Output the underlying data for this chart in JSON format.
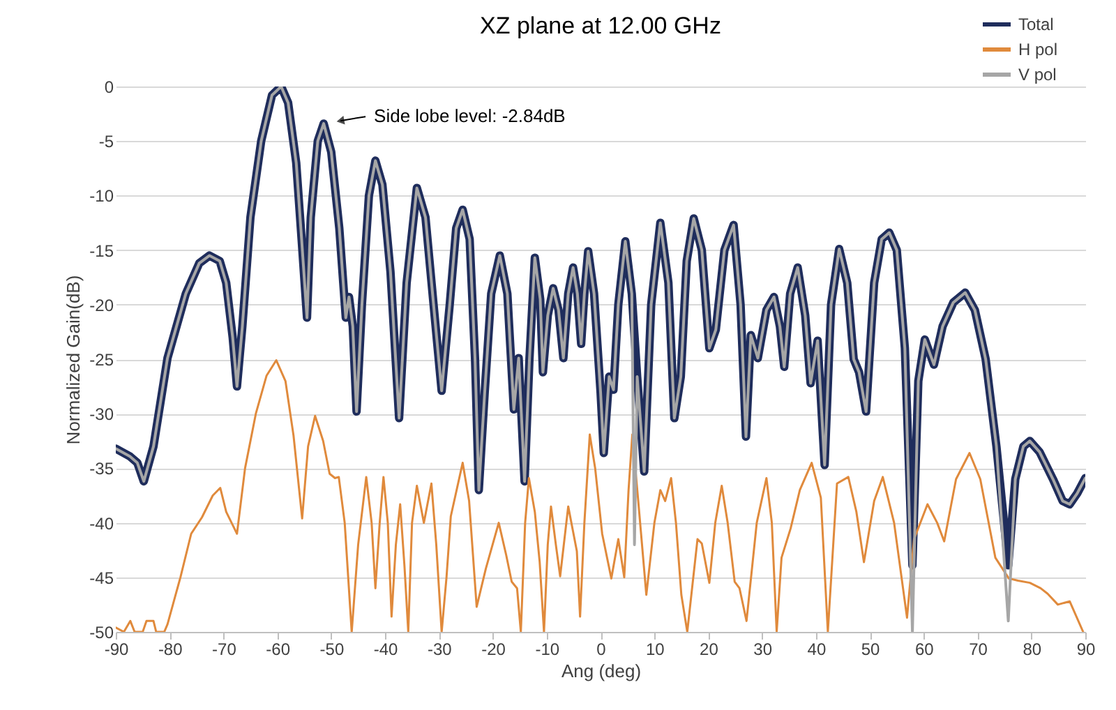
{
  "chart_data": {
    "type": "line",
    "title": "XZ plane at 12.00 GHz",
    "xlabel": "Ang (deg)",
    "ylabel": "Normalized Gain(dB)",
    "xlim": [
      -90,
      90
    ],
    "xticks": [
      -90,
      -80,
      -70,
      -60,
      -50,
      -40,
      -30,
      -20,
      -10,
      0,
      10,
      20,
      30,
      40,
      50,
      60,
      70,
      80,
      90
    ],
    "ylim": [
      -50,
      0
    ],
    "yticks": [
      -50,
      -45,
      -40,
      -35,
      -30,
      -25,
      -20,
      -15,
      -10,
      -5,
      0
    ],
    "grid": "y",
    "legend": "top right",
    "marker": "none",
    "line_style": "solid",
    "annotations": [
      {
        "text": "Side lobe level: -2.84dB",
        "x": -51.4,
        "y": -3.4
      }
    ],
    "series": [
      {
        "name": "Total",
        "color": "#1f2d5c",
        "x": [
          -90,
          -87.4,
          -86,
          -84.8,
          -83,
          -80.4,
          -77,
          -74.5,
          -72.6,
          -70.7,
          -69.5,
          -68.3,
          -67.5,
          -66.5,
          -65,
          -63,
          -61,
          -59.3,
          -58,
          -56.5,
          -55.5,
          -54.5,
          -53.8,
          -52.5,
          -51.4,
          -50,
          -48.5,
          -47.3,
          -46.7,
          -46,
          -45.3,
          -44.3,
          -43,
          -41.8,
          -40.5,
          -39,
          -37.4,
          -36,
          -34.1,
          -32.5,
          -31,
          -29.5,
          -28,
          -26.8,
          -25.6,
          -24.3,
          -23.3,
          -22.6,
          -21.5,
          -20.3,
          -18.7,
          -17.3,
          -16.1,
          -15.2,
          -14.1,
          -13.2,
          -12.2,
          -11.2,
          -10.7,
          -9.8,
          -8.8,
          -7.8,
          -6.9,
          -6,
          -5.1,
          -4.3,
          -3.6,
          -3,
          -2.3,
          -1.2,
          0,
          0.6,
          1.6,
          2.4,
          3.3,
          4.6,
          5.8,
          6.8,
          8.1,
          9.4,
          11.1,
          12.6,
          13.7,
          14.9,
          16,
          17.3,
          18.8,
          20.2,
          21.4,
          23,
          24.7,
          26,
          27,
          27.9,
          29.2,
          30.8,
          32.2,
          33.3,
          34.1,
          35.2,
          36.6,
          38,
          39,
          40.3,
          41.6,
          42.8,
          44.3,
          45.8,
          47,
          48,
          49.3,
          50.8,
          52.2,
          53.6,
          55,
          56.5,
          57.9,
          59,
          60.2,
          61.9,
          63.5,
          65.5,
          67.7,
          69.5,
          71.5,
          73.5,
          75.7,
          77,
          78.5,
          79.7,
          81.5,
          84,
          85.8,
          87.1,
          88.5,
          90
        ],
        "values": [
          -33.2,
          -33.9,
          -34.5,
          -36.2,
          -33,
          -24.9,
          -19,
          -16.2,
          -15.5,
          -16,
          -18,
          -23,
          -27.5,
          -22,
          -12,
          -5,
          -0.8,
          0,
          -1.5,
          -7,
          -14,
          -21.2,
          -12,
          -5,
          -3.4,
          -6,
          -13,
          -21.2,
          -19.3,
          -22,
          -29.8,
          -20,
          -10,
          -6.8,
          -9,
          -17,
          -30.4,
          -18,
          -9.3,
          -12,
          -20,
          -27.9,
          -20,
          -13,
          -11.3,
          -14,
          -25,
          -37,
          -28,
          -19,
          -15.5,
          -19,
          -29.6,
          -24.9,
          -36.2,
          -25,
          -15.7,
          -19.5,
          -26.2,
          -21,
          -18.5,
          -20.5,
          -24.9,
          -19,
          -16.6,
          -19,
          -23.6,
          -19,
          -15.1,
          -19,
          -28,
          -33.6,
          -26.6,
          -27.8,
          -20,
          -14.2,
          -19,
          -26.6,
          -35.3,
          -20,
          -12.5,
          -18,
          -30.4,
          -26.6,
          -16,
          -12.1,
          -15,
          -24,
          -22.3,
          -15,
          -12.7,
          -20,
          -32.1,
          -22.8,
          -24.9,
          -20.5,
          -19.3,
          -22,
          -25.7,
          -19,
          -16.6,
          -21,
          -27.2,
          -23.3,
          -34.7,
          -20,
          -14.9,
          -18,
          -25,
          -26.2,
          -29.8,
          -18,
          -14,
          -13.4,
          -15,
          -24,
          -43.9,
          -27,
          -23.2,
          -25.5,
          -22,
          -19.8,
          -18.9,
          -20.5,
          -25,
          -33,
          -43.9,
          -36,
          -33,
          -32.5,
          -33.5,
          -36,
          -38,
          -38.3,
          -37.3,
          -35.9
        ]
      },
      {
        "name": "H pol",
        "color": "#e08a3c",
        "x": [
          -90,
          -88.5,
          -87.3,
          -86.5,
          -85,
          -84.3,
          -83,
          -82.5,
          -81,
          -80.4,
          -78,
          -76,
          -74,
          -72,
          -70.6,
          -69.5,
          -68.5,
          -67.5,
          -66,
          -64,
          -62,
          -60.2,
          -58.5,
          -57,
          -55.4,
          -54.3,
          -53,
          -51.5,
          -50.3,
          -49.3,
          -48.6,
          -47.5,
          -46.2,
          -45,
          -43.5,
          -42.5,
          -41.8,
          -41,
          -40.3,
          -39.5,
          -38.8,
          -38,
          -37.2,
          -36.4,
          -35.7,
          -35,
          -34.1,
          -32.8,
          -31.4,
          -30.5,
          -29.5,
          -28.6,
          -27.8,
          -25.6,
          -24.4,
          -23,
          -21.3,
          -18.9,
          -17.5,
          -16.5,
          -15.5,
          -14.8,
          -14,
          -13.3,
          -12.2,
          -11.3,
          -10.5,
          -9.8,
          -9.2,
          -8.3,
          -7.5,
          -6,
          -4.4,
          -3.8,
          -3,
          -2,
          -1,
          0.3,
          2,
          3.3,
          4.4,
          5.2,
          5.9,
          7,
          8.5,
          10,
          11.1,
          12,
          13.1,
          14,
          15,
          16.1,
          18,
          18.8,
          20.2,
          21.3,
          22.5,
          23.6,
          24.9,
          25.8,
          27.1,
          29,
          30.8,
          31.8,
          32.7,
          33.6,
          35.3,
          37,
          39.2,
          40.9,
          42.2,
          43.9,
          46,
          47.5,
          48.9,
          50.8,
          52.4,
          54.5,
          56.9,
          58.2,
          60.7,
          62.5,
          63.8,
          66,
          68.5,
          70.5,
          73.3,
          75.8,
          77.5,
          79.7,
          81.7,
          83,
          84.9,
          87.1,
          89.6
        ],
        "values": [
          -49.6,
          -50,
          -49,
          -50,
          -50,
          -49,
          -49,
          -50,
          -50,
          -49.3,
          -45,
          -41,
          -39.5,
          -37.5,
          -36.8,
          -39,
          -40,
          -41,
          -35,
          -30,
          -26.5,
          -25.1,
          -27,
          -32,
          -39.6,
          -33,
          -30.2,
          -32.5,
          -35.5,
          -35.9,
          -35.8,
          -40,
          -50,
          -42,
          -35.8,
          -40,
          -46,
          -40,
          -35.8,
          -40,
          -48.6,
          -42,
          -38.3,
          -44,
          -50,
          -40,
          -36.6,
          -40,
          -36.4,
          -42,
          -50,
          -45,
          -39.4,
          -34.5,
          -38,
          -47.7,
          -44.2,
          -40,
          -43,
          -45.4,
          -46,
          -50,
          -40,
          -35.9,
          -39,
          -43.6,
          -50,
          -42,
          -38.5,
          -42,
          -44.9,
          -38.5,
          -42.6,
          -48.6,
          -40,
          -31.9,
          -35,
          -41,
          -45.1,
          -41.5,
          -45,
          -37,
          -31.9,
          -38,
          -46.6,
          -40,
          -37,
          -38,
          -35.9,
          -40,
          -46.6,
          -50,
          -41.5,
          -41.9,
          -45.5,
          -40,
          -36.6,
          -40,
          -45.4,
          -46,
          -49,
          -40,
          -35.9,
          -40,
          -50,
          -43.2,
          -40.5,
          -37,
          -34.5,
          -37.7,
          -50,
          -36.4,
          -35.8,
          -39,
          -43.6,
          -38,
          -35.8,
          -40,
          -48.7,
          -41.5,
          -38.3,
          -40,
          -41.7,
          -36,
          -33.6,
          -36,
          -43.2,
          -45.1,
          -45.3,
          -45.5,
          -46,
          -46.5,
          -47.5,
          -47.2,
          -50
        ]
      },
      {
        "name": "V pol",
        "color": "#a6a6a6",
        "x": [
          -90,
          -87.4,
          -86,
          -84.8,
          -83,
          -80.4,
          -77,
          -74.5,
          -72.6,
          -70.7,
          -69.5,
          -68.3,
          -67.5,
          -66.5,
          -65,
          -63,
          -61,
          -59.3,
          -58,
          -56.5,
          -55.5,
          -54.5,
          -53.8,
          -52.5,
          -51.4,
          -50,
          -48.5,
          -47.3,
          -46.7,
          -46,
          -45.3,
          -44.3,
          -43,
          -41.8,
          -40.5,
          -39,
          -37.4,
          -36,
          -34.1,
          -32.5,
          -31,
          -29.5,
          -28,
          -26.8,
          -25.6,
          -24.3,
          -23.3,
          -22.6,
          -21.5,
          -20.3,
          -18.7,
          -17.3,
          -16.1,
          -15.2,
          -14.1,
          -13.2,
          -12.2,
          -11.2,
          -10.7,
          -9.8,
          -8.8,
          -7.8,
          -6.9,
          -6,
          -5.1,
          -4.3,
          -3.6,
          -3,
          -2.3,
          -1.2,
          0,
          0.6,
          1.6,
          2.4,
          3.3,
          4.6,
          5.8,
          6.3,
          6.8,
          8.1,
          9.4,
          11.1,
          12.6,
          13.7,
          14.9,
          16,
          17.3,
          18.8,
          20.2,
          21.4,
          23,
          24.7,
          26,
          27,
          27.9,
          29.2,
          30.8,
          32.2,
          33.3,
          34.1,
          35.2,
          36.6,
          38,
          39,
          40.3,
          41.6,
          42.8,
          44.3,
          45.8,
          47,
          48,
          49.3,
          50.8,
          52.2,
          53.6,
          55,
          56.5,
          57.9,
          59,
          60.2,
          61.9,
          63.5,
          65.5,
          67.7,
          69.5,
          71.5,
          73.5,
          75.7,
          77,
          78.5,
          79.7,
          81.5,
          84,
          85.8,
          87.1,
          88.5,
          90
        ],
        "values": [
          -33.2,
          -33.9,
          -34.5,
          -36.2,
          -33,
          -24.9,
          -19,
          -16.2,
          -15.5,
          -16,
          -18,
          -23,
          -27.5,
          -22,
          -12,
          -5,
          -0.8,
          0,
          -1.5,
          -7,
          -14,
          -21.2,
          -12,
          -5,
          -3.4,
          -6,
          -13,
          -21.2,
          -19.3,
          -22,
          -29.8,
          -20,
          -10,
          -6.8,
          -9,
          -17,
          -30.4,
          -18,
          -9.3,
          -12,
          -20,
          -27.9,
          -20,
          -13,
          -11.3,
          -14,
          -25,
          -37,
          -28,
          -19,
          -15.5,
          -19,
          -29.6,
          -24.9,
          -36.2,
          -25,
          -15.7,
          -19.5,
          -26.2,
          -21,
          -18.5,
          -20.5,
          -24.9,
          -19,
          -16.6,
          -19,
          -23.6,
          -19,
          -15.1,
          -19,
          -28,
          -33.6,
          -26.6,
          -27.8,
          -20,
          -14.2,
          -19,
          -42,
          -26.6,
          -35.3,
          -20,
          -12.5,
          -18,
          -30.4,
          -26.6,
          -16,
          -12.1,
          -15,
          -24,
          -22.3,
          -15,
          -12.7,
          -20,
          -32.1,
          -22.8,
          -24.9,
          -20.5,
          -19.3,
          -22,
          -25.7,
          -19,
          -16.6,
          -21,
          -27.2,
          -23.3,
          -34.7,
          -20,
          -14.9,
          -18,
          -25,
          -26.2,
          -29.8,
          -18,
          -14,
          -13.4,
          -15,
          -24,
          -50,
          -27,
          -23.2,
          -25.5,
          -22,
          -19.8,
          -18.9,
          -20.5,
          -25,
          -33,
          -49,
          -36,
          -33,
          -32.5,
          -33.5,
          -36,
          -38,
          -38.3,
          -37.3,
          -35.9
        ]
      }
    ]
  }
}
